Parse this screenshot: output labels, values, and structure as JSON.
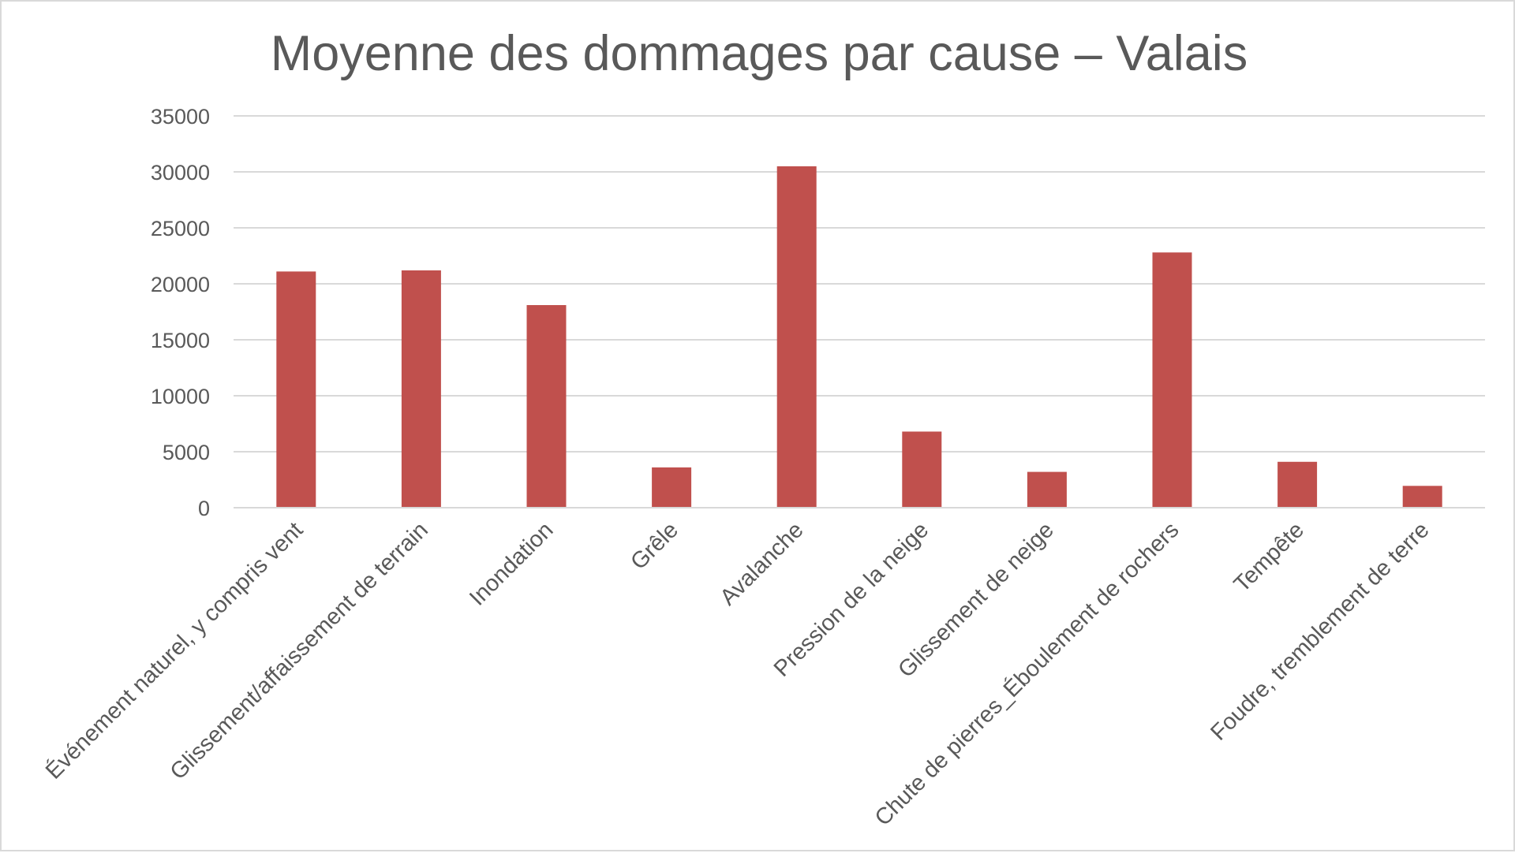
{
  "chart_data": {
    "type": "bar",
    "title": "Moyenne des dommages par cause – Valais",
    "xlabel": "",
    "ylabel": "",
    "categories": [
      "Événement naturel, y compris vent",
      "Glissement/affaissement de terrain",
      "Inondation",
      "Grêle",
      "Avalanche",
      "Pression de la neige",
      "Glissement de neige",
      "Chute de pierres_Éboulement de rochers",
      "Tempête",
      "Foudre, tremblement de terre"
    ],
    "values": [
      21100,
      21200,
      18100,
      3600,
      30500,
      6800,
      3200,
      22800,
      4100,
      1950
    ],
    "ylim": [
      0,
      35000
    ],
    "yticks": [
      0,
      5000,
      10000,
      15000,
      20000,
      25000,
      30000,
      35000
    ],
    "ytick_labels": [
      "0",
      "5000",
      "10000",
      "15000",
      "20000",
      "25000",
      "30000",
      "35000"
    ],
    "grid": true,
    "legend": "none",
    "bar_color": "#c0504d"
  }
}
